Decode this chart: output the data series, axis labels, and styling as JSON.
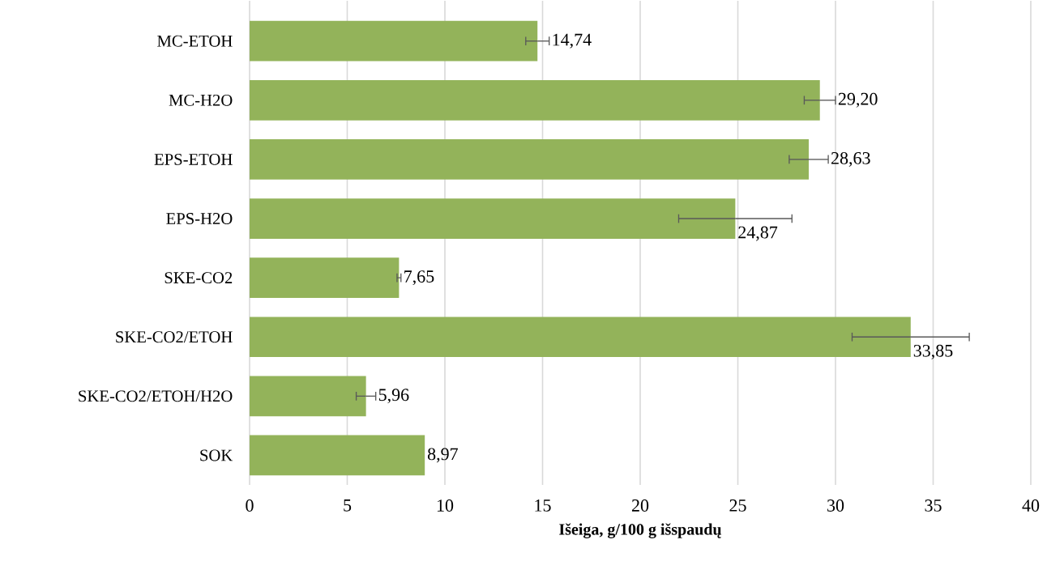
{
  "chart_data": {
    "type": "bar",
    "orientation": "horizontal",
    "xlabel": "Išeiga, g/100 g išspaudų",
    "categories": [
      "MC-ETOH",
      "MC-H2O",
      "EPS-ETOH",
      "EPS-H2O",
      "SKE-CO2",
      "SKE-CO2/ETOH",
      "SKE-CO2/ETOH/H2O",
      "SOK"
    ],
    "values": [
      14.74,
      29.2,
      28.63,
      24.87,
      7.65,
      33.85,
      5.96,
      8.97
    ],
    "errors": [
      0.6,
      0.8,
      1.0,
      2.9,
      0.1,
      3.0,
      0.5,
      null
    ],
    "value_labels": [
      "14,74",
      "29,20",
      "28,63",
      "24,87",
      "7,65",
      "33,85",
      "5,96",
      "8,97"
    ],
    "color": "#93b35a",
    "xlim": [
      0,
      40
    ],
    "xticks": [
      0,
      5,
      10,
      15,
      20,
      25,
      30,
      35,
      40
    ],
    "grid": "x"
  }
}
